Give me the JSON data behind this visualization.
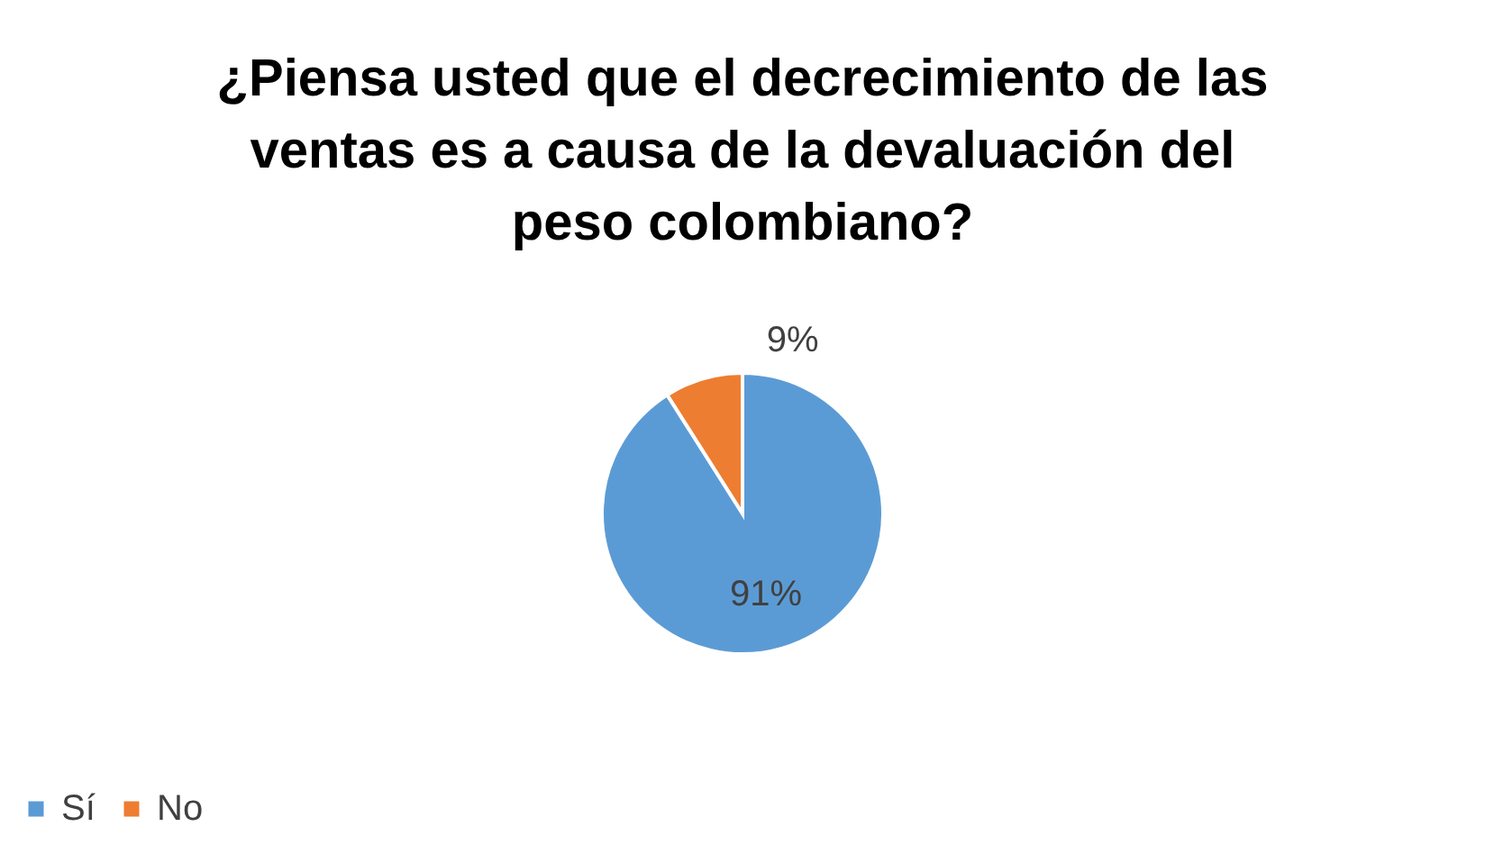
{
  "chart_data": {
    "type": "pie",
    "title": "¿Piensa usted que el decrecimiento de las ventas es a causa de la devaluación del peso colombiano?",
    "categories": [
      "Sí",
      "No"
    ],
    "values": [
      91,
      9
    ],
    "colors": [
      "#5b9bd5",
      "#ed7d31"
    ],
    "value_labels": [
      "91%",
      "9%"
    ],
    "legend": "bottom"
  }
}
